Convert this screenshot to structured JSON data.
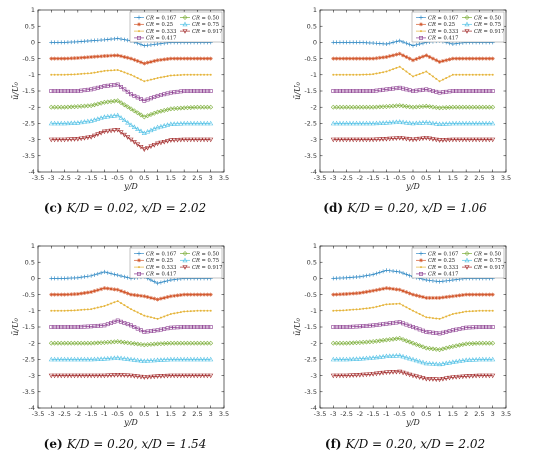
{
  "figure": {
    "ylabel": "ū/U₀",
    "xlabel": "y/D",
    "legend_prefix": "CR = ",
    "series_style": [
      {
        "cr": "0.167",
        "color": "#3b8fc7",
        "marker": "plus"
      },
      {
        "cr": "0.50",
        "color": "#7cae3a",
        "marker": "diamond"
      },
      {
        "cr": "0.25",
        "color": "#d2572c",
        "marker": "star"
      },
      {
        "cr": "0.75",
        "color": "#55c2e6",
        "marker": "triangle"
      },
      {
        "cr": "0.333",
        "color": "#e5b43a",
        "marker": "dot"
      },
      {
        "cr": "0.917",
        "color": "#a22a2a",
        "marker": "tri-down"
      },
      {
        "cr": "0.417",
        "color": "#8a3b8f",
        "marker": "square"
      }
    ]
  },
  "chart_data": [
    {
      "type": "line",
      "caption_letter": "(c)",
      "caption_rest": "K/D = 0.02, x/D = 2.02",
      "xlabel": "y/D",
      "ylabel": "ū/U₀",
      "xlim": [
        -3.5,
        3.5
      ],
      "ylim": [
        -4,
        1
      ],
      "xticks": [
        -3.5,
        -3,
        -2.5,
        -2,
        -1.5,
        -1,
        -0.5,
        0,
        0.5,
        1,
        1.5,
        2,
        2.5,
        3,
        3.5
      ],
      "yticks": [
        -4,
        -3.5,
        -3,
        -2.5,
        -2,
        -1.5,
        -1,
        -0.5,
        0,
        0.5,
        1
      ],
      "legend": "top-right",
      "x": [
        -3,
        -2.5,
        -2,
        -1.5,
        -1,
        -0.5,
        0,
        0.5,
        1,
        1.5,
        2,
        2.5,
        3
      ],
      "series": [
        {
          "name": "CR = 0.167",
          "values": [
            0,
            0,
            0.02,
            0.05,
            0.08,
            0.12,
            0.05,
            -0.1,
            -0.05,
            0,
            0,
            0,
            0
          ]
        },
        {
          "name": "CR = 0.25",
          "values": [
            -0.5,
            -0.5,
            -0.48,
            -0.45,
            -0.42,
            -0.4,
            -0.5,
            -0.65,
            -0.55,
            -0.5,
            -0.5,
            -0.5,
            -0.5
          ]
        },
        {
          "name": "CR = 0.333",
          "values": [
            -1,
            -1,
            -0.98,
            -0.95,
            -0.88,
            -0.85,
            -1.0,
            -1.2,
            -1.1,
            -1.02,
            -1,
            -1,
            -1
          ]
        },
        {
          "name": "CR = 0.417",
          "values": [
            -1.5,
            -1.5,
            -1.5,
            -1.45,
            -1.35,
            -1.3,
            -1.6,
            -1.8,
            -1.65,
            -1.55,
            -1.5,
            -1.5,
            -1.5
          ]
        },
        {
          "name": "CR = 0.50",
          "values": [
            -2,
            -2,
            -1.98,
            -1.95,
            -1.85,
            -1.8,
            -2.05,
            -2.3,
            -2.15,
            -2.05,
            -2.02,
            -2,
            -2
          ]
        },
        {
          "name": "CR = 0.75",
          "values": [
            -2.5,
            -2.5,
            -2.48,
            -2.42,
            -2.3,
            -2.25,
            -2.55,
            -2.8,
            -2.62,
            -2.52,
            -2.5,
            -2.5,
            -2.5
          ]
        },
        {
          "name": "CR = 0.917",
          "values": [
            -3,
            -3,
            -2.98,
            -2.92,
            -2.75,
            -2.7,
            -3.0,
            -3.3,
            -3.12,
            -3.02,
            -3,
            -3,
            -3
          ]
        }
      ]
    },
    {
      "type": "line",
      "caption_letter": "(d)",
      "caption_rest": "K/D = 0.20, x/D = 1.06",
      "xlabel": "y/D",
      "ylabel": "ū/U₀",
      "xlim": [
        -3.5,
        3.5
      ],
      "ylim": [
        -4,
        1
      ],
      "xticks": [
        -3.5,
        -3,
        -2.5,
        -2,
        -1.5,
        -1,
        -0.5,
        0,
        0.5,
        1,
        1.5,
        2,
        2.5,
        3,
        3.5
      ],
      "yticks": [
        -4,
        -3.5,
        -3,
        -2.5,
        -2,
        -1.5,
        -1,
        -0.5,
        0,
        0.5,
        1
      ],
      "legend": "top-right",
      "x": [
        -3,
        -2.5,
        -2,
        -1.5,
        -1,
        -0.5,
        0,
        0.5,
        1,
        1.5,
        2,
        2.5,
        3
      ],
      "series": [
        {
          "name": "CR = 0.167",
          "values": [
            0,
            0,
            0,
            -0.02,
            -0.05,
            0.05,
            -0.1,
            0.0,
            0.05,
            -0.05,
            0,
            0,
            0
          ]
        },
        {
          "name": "CR = 0.25",
          "values": [
            -0.5,
            -0.5,
            -0.5,
            -0.5,
            -0.45,
            -0.35,
            -0.55,
            -0.4,
            -0.6,
            -0.5,
            -0.5,
            -0.5,
            -0.5
          ]
        },
        {
          "name": "CR = 0.333",
          "values": [
            -1,
            -1,
            -1,
            -0.98,
            -0.9,
            -0.75,
            -1.05,
            -0.9,
            -1.2,
            -1.0,
            -1,
            -1,
            -1
          ]
        },
        {
          "name": "CR = 0.417",
          "values": [
            -1.5,
            -1.5,
            -1.5,
            -1.5,
            -1.45,
            -1.4,
            -1.5,
            -1.45,
            -1.55,
            -1.5,
            -1.5,
            -1.5,
            -1.5
          ]
        },
        {
          "name": "CR = 0.50",
          "values": [
            -2,
            -2,
            -2,
            -2,
            -1.98,
            -1.95,
            -2,
            -1.97,
            -2.02,
            -2,
            -2,
            -2,
            -2
          ]
        },
        {
          "name": "CR = 0.75",
          "values": [
            -2.5,
            -2.5,
            -2.5,
            -2.5,
            -2.48,
            -2.45,
            -2.5,
            -2.47,
            -2.52,
            -2.5,
            -2.5,
            -2.5,
            -2.5
          ]
        },
        {
          "name": "CR = 0.917",
          "values": [
            -3,
            -3,
            -3,
            -3,
            -2.98,
            -2.95,
            -3,
            -2.95,
            -3.02,
            -3,
            -3,
            -3,
            -3
          ]
        }
      ]
    },
    {
      "type": "line",
      "caption_letter": "(e)",
      "caption_rest": "K/D = 0.20, x/D = 1.54",
      "xlabel": "y/D",
      "ylabel": "ū/U₀",
      "xlim": [
        -3.5,
        3.5
      ],
      "ylim": [
        -4,
        1
      ],
      "xticks": [
        -3.5,
        -3,
        -2.5,
        -2,
        -1.5,
        -1,
        -0.5,
        0,
        0.5,
        1,
        1.5,
        2,
        2.5,
        3,
        3.5
      ],
      "yticks": [
        -4,
        -3.5,
        -3,
        -2.5,
        -2,
        -1.5,
        -1,
        -0.5,
        0,
        0.5,
        1
      ],
      "legend": "top-right",
      "x": [
        -3,
        -2.5,
        -2,
        -1.5,
        -1,
        -0.5,
        0,
        0.5,
        1,
        1.5,
        2,
        2.5,
        3
      ],
      "series": [
        {
          "name": "CR = 0.167",
          "values": [
            0,
            0,
            0.02,
            0.08,
            0.2,
            0.1,
            0.0,
            0.05,
            -0.15,
            -0.05,
            0,
            0,
            0
          ]
        },
        {
          "name": "CR = 0.25",
          "values": [
            -0.5,
            -0.5,
            -0.48,
            -0.42,
            -0.3,
            -0.35,
            -0.5,
            -0.55,
            -0.65,
            -0.55,
            -0.5,
            -0.5,
            -0.5
          ]
        },
        {
          "name": "CR = 0.333",
          "values": [
            -1,
            -1,
            -0.98,
            -0.95,
            -0.85,
            -0.7,
            -0.95,
            -1.15,
            -1.25,
            -1.1,
            -1.02,
            -1,
            -1
          ]
        },
        {
          "name": "CR = 0.417",
          "values": [
            -1.5,
            -1.5,
            -1.5,
            -1.48,
            -1.45,
            -1.3,
            -1.45,
            -1.65,
            -1.6,
            -1.52,
            -1.5,
            -1.5,
            -1.5
          ]
        },
        {
          "name": "CR = 0.50",
          "values": [
            -2,
            -2,
            -2,
            -2,
            -1.98,
            -1.95,
            -2,
            -2.05,
            -2.02,
            -2,
            -2,
            -2,
            -2
          ]
        },
        {
          "name": "CR = 0.75",
          "values": [
            -2.5,
            -2.5,
            -2.5,
            -2.5,
            -2.48,
            -2.45,
            -2.5,
            -2.55,
            -2.52,
            -2.5,
            -2.5,
            -2.5,
            -2.5
          ]
        },
        {
          "name": "CR = 0.917",
          "values": [
            -3,
            -3,
            -3,
            -3,
            -3,
            -2.98,
            -3.0,
            -3.05,
            -3.02,
            -3,
            -3,
            -3,
            -3
          ]
        }
      ]
    },
    {
      "type": "line",
      "caption_letter": "(f)",
      "caption_rest": "K/D = 0.20, x/D = 2.02",
      "xlabel": "y/D",
      "ylabel": "ū/U₀",
      "xlim": [
        -3.5,
        3.5
      ],
      "ylim": [
        -4,
        1
      ],
      "xticks": [
        -3.5,
        -3,
        -2.5,
        -2,
        -1.5,
        -1,
        -0.5,
        0,
        0.5,
        1,
        1.5,
        2,
        2.5,
        3,
        3.5
      ],
      "yticks": [
        -4,
        -3.5,
        -3,
        -2.5,
        -2,
        -1.5,
        -1,
        -0.5,
        0,
        0.5,
        1
      ],
      "legend": "top-right",
      "x": [
        -3,
        -2.5,
        -2,
        -1.5,
        -1,
        -0.5,
        0,
        0.5,
        1,
        1.5,
        2,
        2.5,
        3
      ],
      "series": [
        {
          "name": "CR = 0.167",
          "values": [
            0,
            0.02,
            0.05,
            0.12,
            0.25,
            0.2,
            0.05,
            -0.05,
            -0.1,
            -0.05,
            0,
            0,
            0
          ]
        },
        {
          "name": "CR = 0.25",
          "values": [
            -0.5,
            -0.48,
            -0.45,
            -0.38,
            -0.3,
            -0.35,
            -0.5,
            -0.6,
            -0.6,
            -0.55,
            -0.5,
            -0.5,
            -0.5
          ]
        },
        {
          "name": "CR = 0.333",
          "values": [
            -1,
            -0.98,
            -0.95,
            -0.9,
            -0.8,
            -0.78,
            -1.0,
            -1.2,
            -1.25,
            -1.1,
            -1.02,
            -1,
            -1
          ]
        },
        {
          "name": "CR = 0.417",
          "values": [
            -1.5,
            -1.5,
            -1.48,
            -1.45,
            -1.4,
            -1.35,
            -1.5,
            -1.65,
            -1.7,
            -1.6,
            -1.52,
            -1.5,
            -1.5
          ]
        },
        {
          "name": "CR = 0.50",
          "values": [
            -2,
            -2,
            -1.98,
            -1.95,
            -1.9,
            -1.85,
            -2.0,
            -2.15,
            -2.2,
            -2.1,
            -2.02,
            -2,
            -2
          ]
        },
        {
          "name": "CR = 0.75",
          "values": [
            -2.5,
            -2.5,
            -2.48,
            -2.45,
            -2.4,
            -2.38,
            -2.5,
            -2.62,
            -2.65,
            -2.58,
            -2.52,
            -2.5,
            -2.5
          ]
        },
        {
          "name": "CR = 0.917",
          "values": [
            -3,
            -3,
            -2.98,
            -2.95,
            -2.9,
            -2.88,
            -3.0,
            -3.1,
            -3.12,
            -3.05,
            -3.02,
            -3,
            -3
          ]
        }
      ]
    }
  ]
}
